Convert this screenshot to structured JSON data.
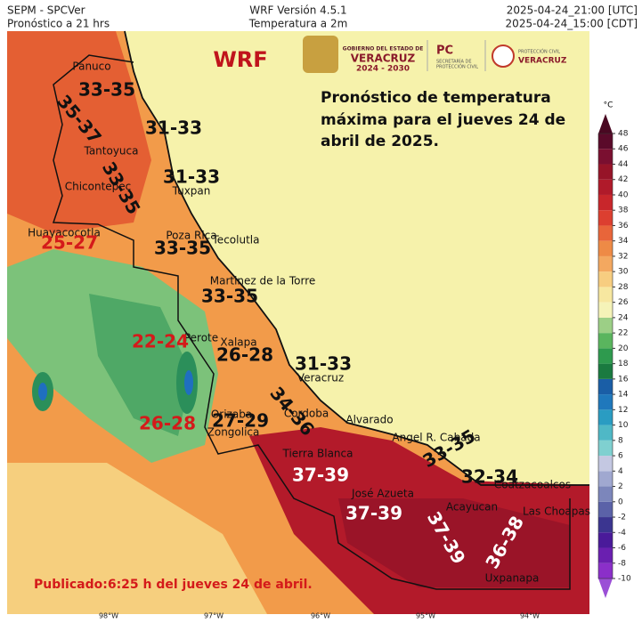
{
  "header": {
    "left": [
      "SEPM - SPCVer",
      "Pronóstico a 21 hrs"
    ],
    "center": [
      "WRF Versión 4.5.1",
      "Temperatura a 2m"
    ],
    "right": [
      "2025-04-24_21:00 [UTC]",
      "2025-04-24_15:00 [CDT]"
    ]
  },
  "brand": "WRF",
  "logos": {
    "gov": [
      "GOBIERNO DEL ESTADO DE",
      "VERACRUZ",
      "2024 - 2030"
    ],
    "pc": [
      "PC",
      "SECRETARÍA DE",
      "PROTECCIÓN CIVIL"
    ],
    "pcv": [
      "PROTECCIÓN CIVIL",
      "VERACRUZ"
    ]
  },
  "forecast": [
    "Pronóstico de temperatura",
    "máxima para el jueves 24 de",
    "abril de 2025."
  ],
  "cities": [
    "Panuco",
    "Tantoyuca",
    "Chicontepec",
    "Tuxpan",
    "Huayacocotla",
    "Poza Rica",
    "Tecolutla",
    "Martinez de la Torre",
    "Perote",
    "Xalapa",
    "Veracruz",
    "Orizaba",
    "Cordoba",
    "Alvarado",
    "Zongolica",
    "Tierra Blanca",
    "Angel R. Cabada",
    "José Azueta",
    "Acayucan",
    "Coatzacoalcos",
    "Las Choapas",
    "Uxpanapa"
  ],
  "ranges": [
    {
      "text": "33-35",
      "color": "#111111"
    },
    {
      "text": "35-37",
      "color": "#111111"
    },
    {
      "text": "31-33",
      "color": "#111111"
    },
    {
      "text": "31-33",
      "color": "#111111"
    },
    {
      "text": "33-35",
      "color": "#111111"
    },
    {
      "text": "25-27",
      "color": "#d41a1a"
    },
    {
      "text": "33-35",
      "color": "#111111"
    },
    {
      "text": "33-35",
      "color": "#111111"
    },
    {
      "text": "22-24",
      "color": "#d41a1a"
    },
    {
      "text": "26-28",
      "color": "#111111"
    },
    {
      "text": "31-33",
      "color": "#111111"
    },
    {
      "text": "34-36",
      "color": "#111111"
    },
    {
      "text": "27-29",
      "color": "#111111"
    },
    {
      "text": "26-28",
      "color": "#d41a1a"
    },
    {
      "text": "37-39",
      "color": "#ffffff"
    },
    {
      "text": "37-39",
      "color": "#ffffff"
    },
    {
      "text": "37-39",
      "color": "#ffffff"
    },
    {
      "text": "33-35",
      "color": "#111111"
    },
    {
      "text": "32-34",
      "color": "#111111"
    },
    {
      "text": "36-38",
      "color": "#ffffff"
    }
  ],
  "published": "Publicado:6:25 h del jueves 24 de abril.",
  "longitudes": [
    "98°W",
    "97°W",
    "96°W",
    "95°W",
    "94°W"
  ],
  "colorbar": {
    "unit": "°C",
    "ticks": [
      -10,
      -8,
      -6,
      -4,
      -2,
      0,
      2,
      4,
      6,
      8,
      10,
      12,
      14,
      16,
      18,
      20,
      22,
      24,
      26,
      28,
      30,
      32,
      34,
      36,
      38,
      40,
      42,
      44,
      46,
      48
    ],
    "colors": [
      "#8b2fc9",
      "#6a1fb0",
      "#4a1a9a",
      "#3b3590",
      "#5b62a8",
      "#7c86bb",
      "#a0a8d0",
      "#c4c8e2",
      "#7fd0d0",
      "#4fb8c6",
      "#2a9cc2",
      "#1f78bc",
      "#1a5ea6",
      "#1a7a40",
      "#2e9a4e",
      "#5ab55e",
      "#9ccf86",
      "#f5f3b8",
      "#f7e7a0",
      "#f7cd80",
      "#f3a860",
      "#ee8a46",
      "#e8653a",
      "#dc3f30",
      "#c8262b",
      "#b01a2a",
      "#961428",
      "#7a0f30",
      "#5a0a2a"
    ]
  }
}
